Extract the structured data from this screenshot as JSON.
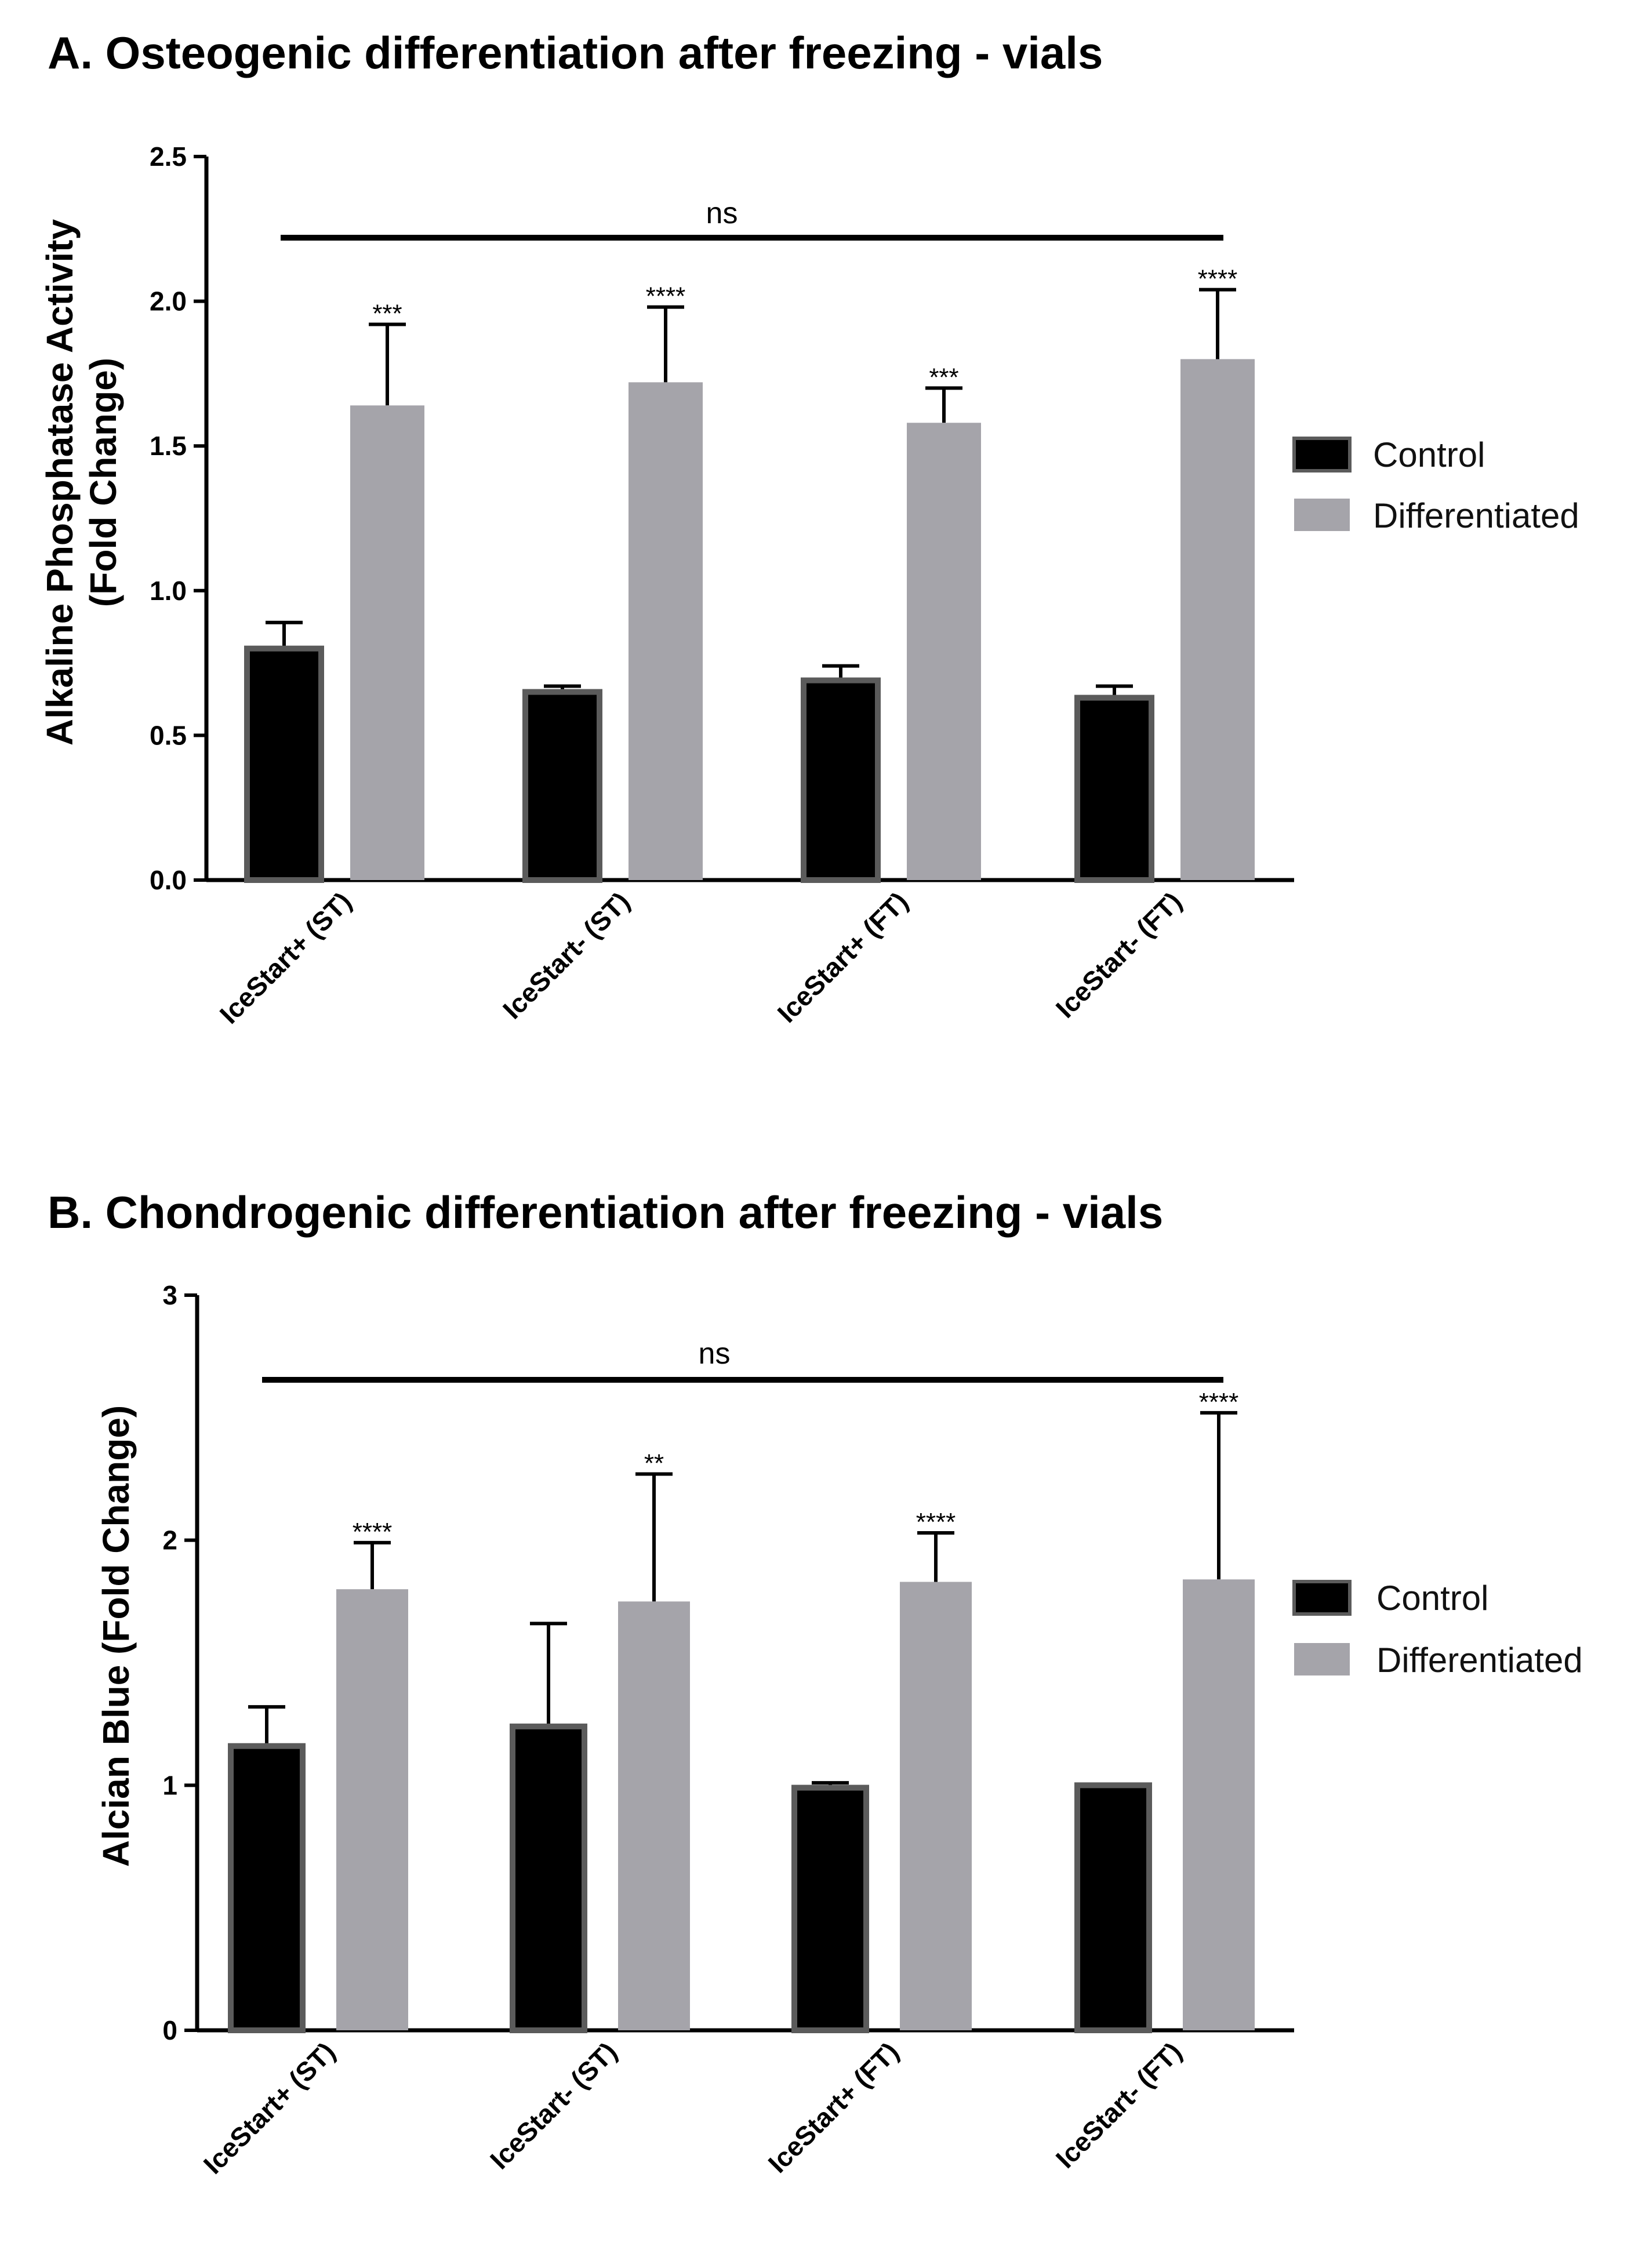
{
  "chart_data": [
    {
      "type": "bar",
      "title": "A. Osteogenic differentiation after freezing - vials",
      "ylabel_lines": [
        "Alkaline Phosphatase Activity",
        "(Fold Change)"
      ],
      "xlabel": "",
      "ylim": [
        0,
        2.5
      ],
      "yticks": [
        "0.0",
        "0.5",
        "1.0",
        "1.5",
        "2.0",
        "2.5"
      ],
      "categories": [
        "IceStart+ (ST)",
        "IceStart- (ST)",
        "IceStart+ (FT)",
        "IceStart- (FT)"
      ],
      "series": [
        {
          "name": "Control",
          "color": "#000000",
          "values": [
            0.8,
            0.65,
            0.69,
            0.63
          ],
          "errors": [
            0.09,
            0.02,
            0.05,
            0.04
          ],
          "significance": [
            "",
            "",
            "",
            ""
          ]
        },
        {
          "name": "Differentiated",
          "color": "#a5a4aa",
          "values": [
            1.64,
            1.72,
            1.58,
            1.8
          ],
          "errors": [
            0.28,
            0.26,
            0.12,
            0.24
          ],
          "significance": [
            "***",
            "****",
            "***",
            "****"
          ]
        }
      ],
      "bracket_label": "ns",
      "legend": [
        "Control",
        "Differentiated"
      ],
      "legend_position": "right",
      "grid": false
    },
    {
      "type": "bar",
      "title": "B. Chondrogenic differentiation after freezing - vials",
      "ylabel_lines": [
        "Alcian Blue (Fold Change)"
      ],
      "xlabel": "",
      "ylim": [
        0,
        3
      ],
      "yticks": [
        "0",
        "1",
        "2",
        "3"
      ],
      "categories": [
        "IceStart+ (ST)",
        "IceStart- (ST)",
        "IceStart+ (FT)",
        "IceStart- (FT)"
      ],
      "series": [
        {
          "name": "Control",
          "color": "#000000",
          "values": [
            1.16,
            1.24,
            0.99,
            1.0
          ],
          "errors": [
            0.16,
            0.42,
            0.02,
            0.0
          ],
          "significance": [
            "",
            "",
            "",
            ""
          ]
        },
        {
          "name": "Differentiated",
          "color": "#a5a4aa",
          "values": [
            1.8,
            1.75,
            1.83,
            1.84
          ],
          "errors": [
            0.19,
            0.52,
            0.2,
            0.68
          ],
          "significance": [
            "****",
            "**",
            "****",
            "****"
          ]
        }
      ],
      "bracket_label": "ns",
      "legend": [
        "Control",
        "Differentiated"
      ],
      "legend_position": "right",
      "grid": false
    }
  ]
}
